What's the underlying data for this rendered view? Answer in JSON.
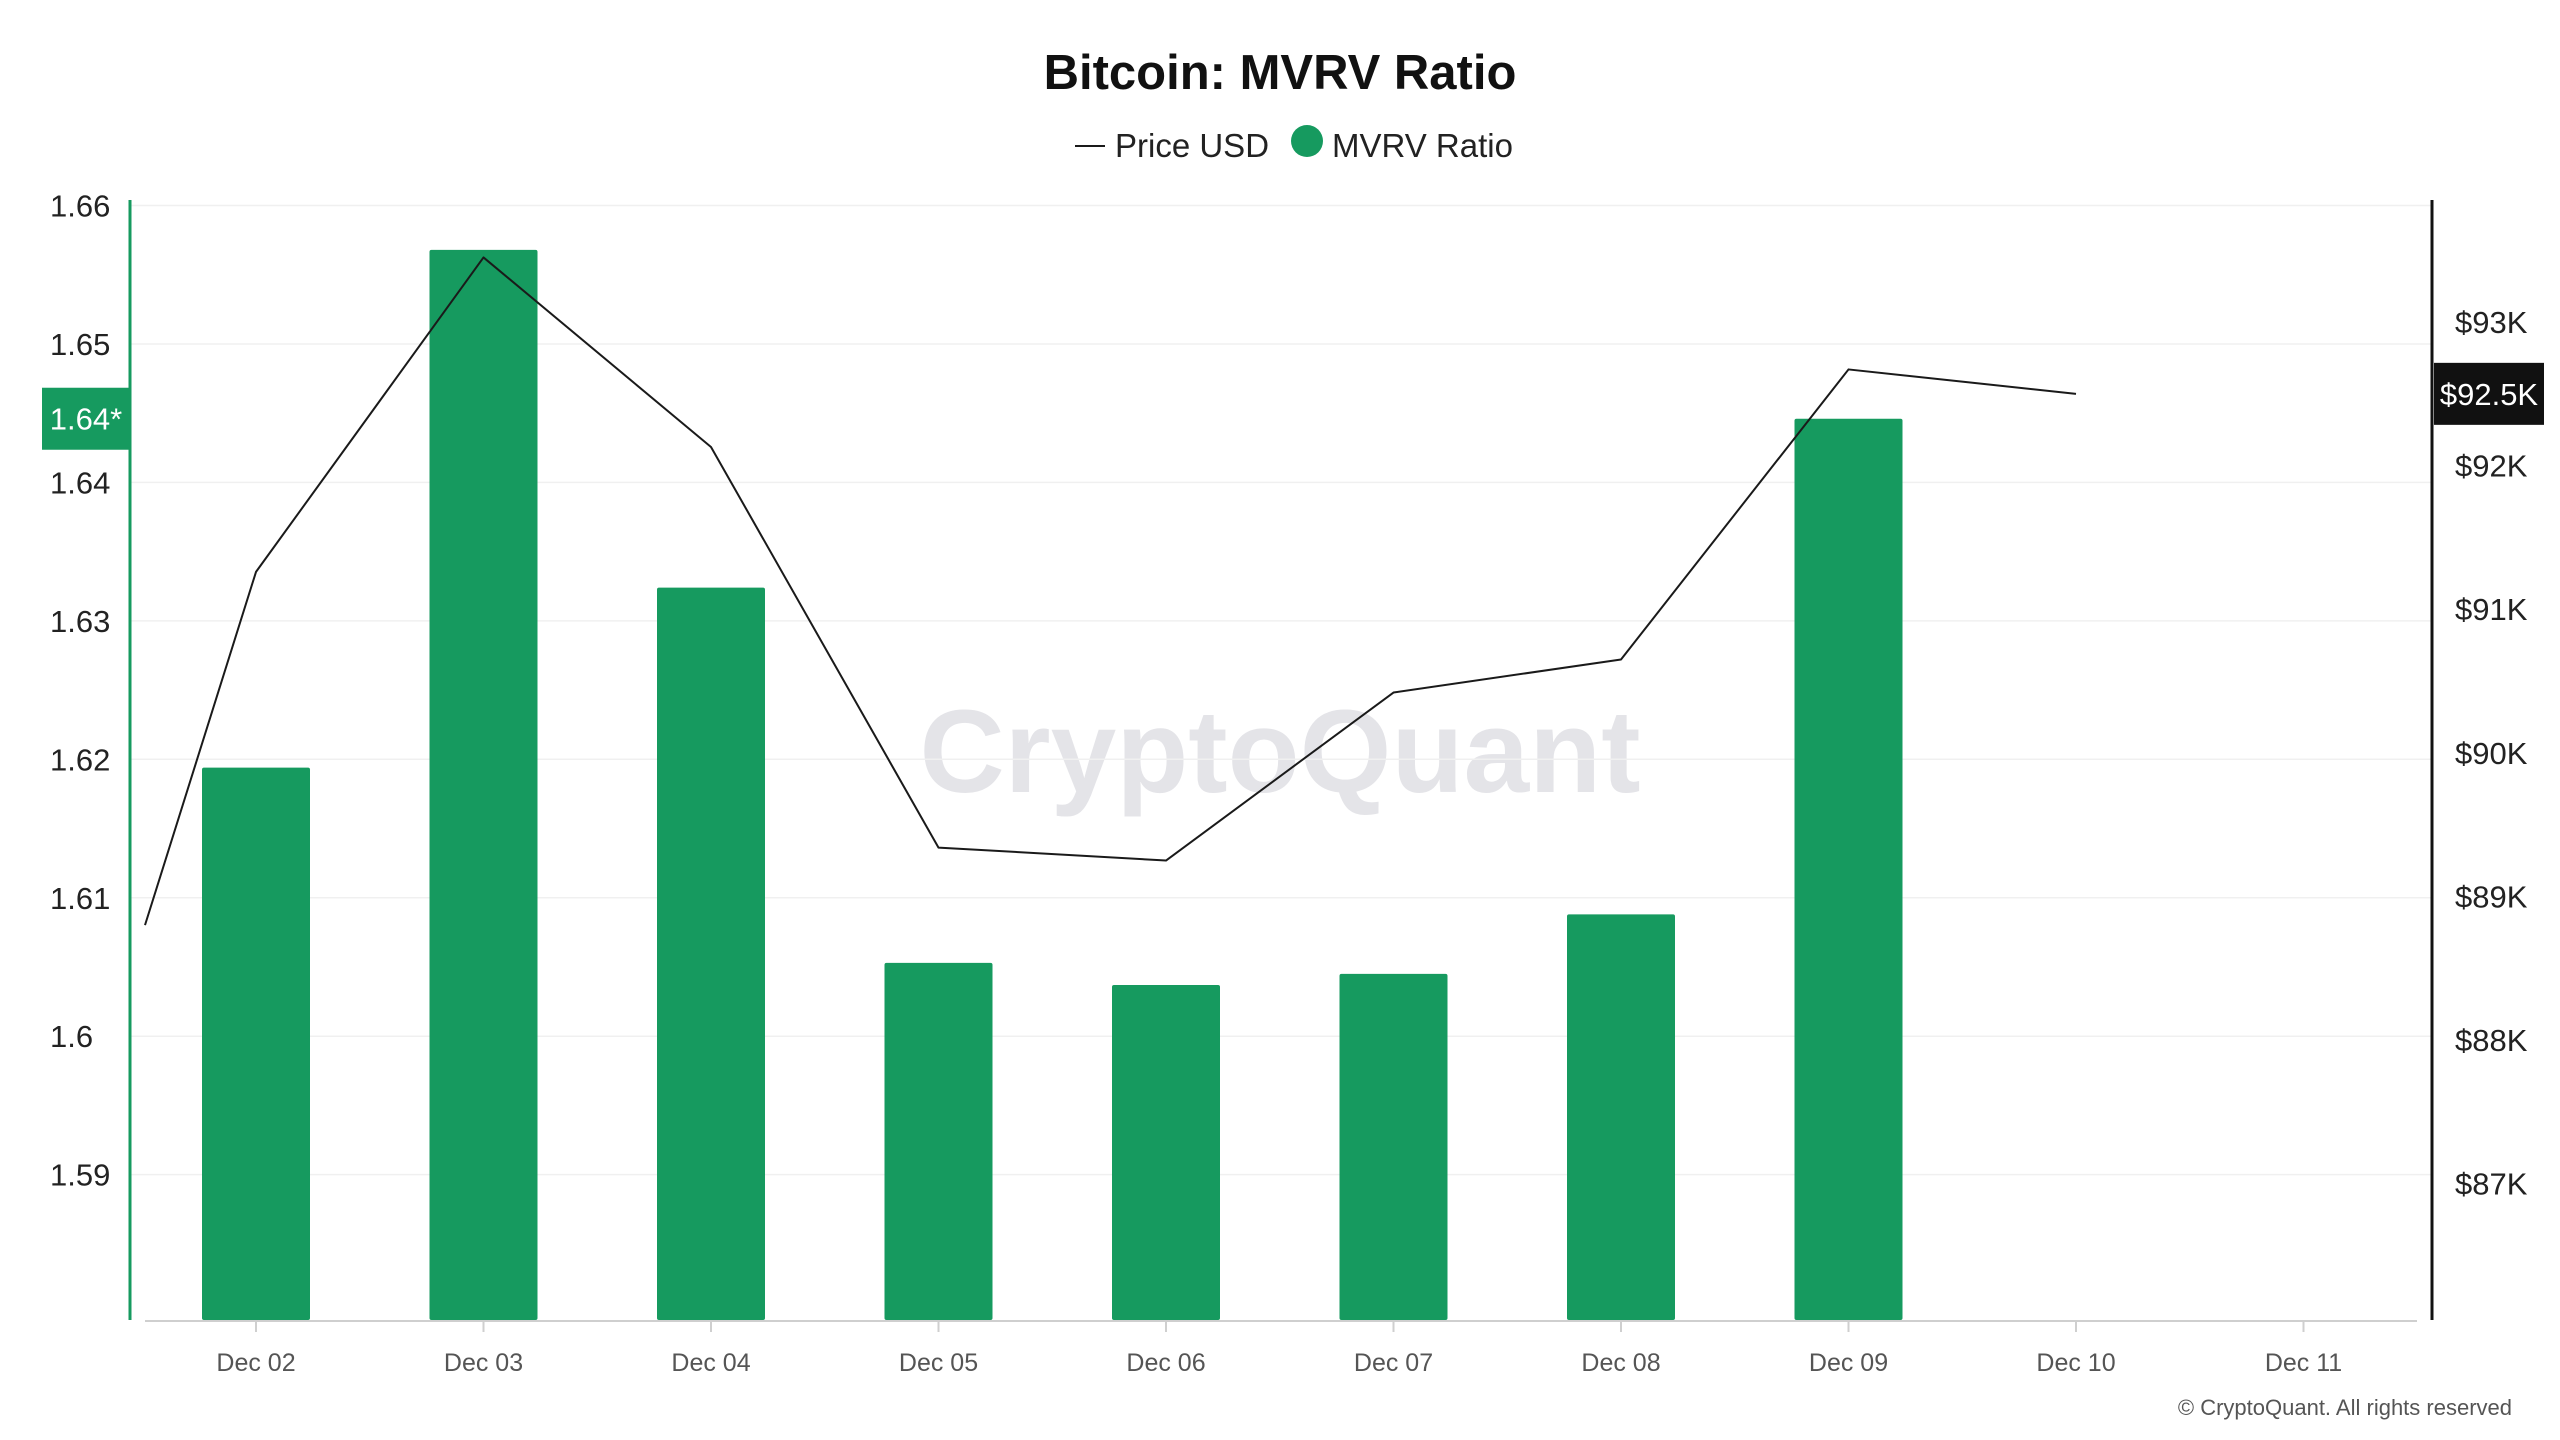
{
  "chart_data": {
    "type": "bar",
    "title": "Bitcoin: MVRV Ratio",
    "categories": [
      "Dec 02",
      "Dec 03",
      "Dec 04",
      "Dec 05",
      "Dec 06",
      "Dec 07",
      "Dec 08",
      "Dec 09",
      "Dec 10",
      "Dec 11"
    ],
    "series": [
      {
        "name": "MVRV Ratio",
        "type": "bar",
        "axis": "left",
        "color": "#169a5f",
        "values": [
          1.6194,
          1.6568,
          1.6324,
          1.6053,
          1.6037,
          1.6045,
          1.6088,
          1.6446,
          null,
          null
        ]
      },
      {
        "name": "Price USD",
        "type": "line",
        "axis": "right",
        "color": "#1a1a1a",
        "start_value": 88800,
        "values": [
          91260,
          93450,
          92130,
          89340,
          89250,
          90420,
          90650,
          92670,
          92500,
          null
        ]
      }
    ],
    "left_axis": {
      "ticks": [
        1.59,
        1.6,
        1.61,
        1.62,
        1.63,
        1.64,
        1.65,
        1.66
      ],
      "tick_labels": [
        "1.59",
        "1.6",
        "1.61",
        "1.62",
        "1.63",
        "1.64",
        "1.65",
        "1.66"
      ],
      "range": [
        1.5795,
        1.6604
      ],
      "current_marker": {
        "value": 1.6446,
        "label": "1.64*"
      }
    },
    "right_axis": {
      "ticks": [
        87000,
        88000,
        89000,
        90000,
        91000,
        92000,
        93000
      ],
      "tick_labels": [
        "$87K",
        "$88K",
        "$89K",
        "$90K",
        "$91K",
        "$92K",
        "$93K"
      ],
      "range": [
        86050,
        93850
      ],
      "current_marker": {
        "value": 92500,
        "label": "$92.5K"
      }
    },
    "legend": {
      "position": "top-center",
      "items": [
        "Price USD",
        "MVRV Ratio"
      ]
    },
    "grid": true
  },
  "watermark": "CryptoQuant",
  "copyright": "© CryptoQuant. All rights reserved",
  "colors": {
    "bar": "#169a5f",
    "line": "#1a1a1a",
    "left_axis": "#169a5f",
    "right_axis": "#111111",
    "left_badge": "#169a5f",
    "right_badge": "#111111",
    "grid": "#f0f0f0"
  }
}
